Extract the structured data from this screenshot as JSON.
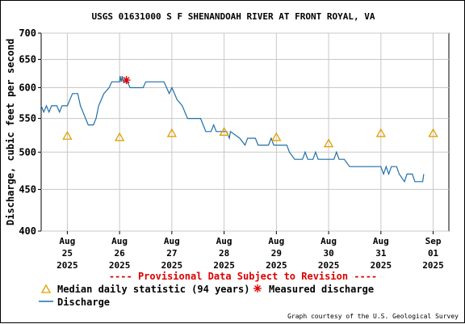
{
  "chart_data": {
    "type": "line",
    "title": "USGS 01631000 S F SHENANDOAH RIVER AT FRONT ROYAL, VA",
    "ylabel": "Discharge, cubic feet per second",
    "y_scale": "log",
    "ylim": [
      400,
      700
    ],
    "y_ticks": [
      "700",
      "650",
      "600",
      "550",
      "500",
      "450",
      "400"
    ],
    "y_tick_values": [
      700,
      650,
      600,
      550,
      500,
      450,
      400
    ],
    "y_grid_values": [
      700,
      650,
      600,
      550,
      500,
      450,
      400
    ],
    "x_ticks": [
      {
        "month": "Aug",
        "day": "25",
        "year": "2025",
        "t": 0
      },
      {
        "month": "Aug",
        "day": "26",
        "year": "2025",
        "t": 1
      },
      {
        "month": "Aug",
        "day": "27",
        "year": "2025",
        "t": 2
      },
      {
        "month": "Aug",
        "day": "28",
        "year": "2025",
        "t": 3
      },
      {
        "month": "Aug",
        "day": "29",
        "year": "2025",
        "t": 4
      },
      {
        "month": "Aug",
        "day": "30",
        "year": "2025",
        "t": 5
      },
      {
        "month": "Aug",
        "day": "31",
        "year": "2025",
        "t": 6
      },
      {
        "month": "Sep",
        "day": "01",
        "year": "2025",
        "t": 7
      }
    ],
    "xlim": [
      -0.5,
      7.3
    ],
    "grid": true,
    "provisional_note": "---- Provisional Data Subject to Revision ----",
    "series": [
      {
        "name": "Discharge",
        "color": "#1f6fa8",
        "kind": "line",
        "points": [
          [
            -0.5,
            570
          ],
          [
            -0.45,
            560
          ],
          [
            -0.4,
            570
          ],
          [
            -0.35,
            560
          ],
          [
            -0.3,
            570
          ],
          [
            -0.2,
            570
          ],
          [
            -0.15,
            560
          ],
          [
            -0.1,
            570
          ],
          [
            0.0,
            570
          ],
          [
            0.05,
            580
          ],
          [
            0.1,
            590
          ],
          [
            0.2,
            590
          ],
          [
            0.25,
            570
          ],
          [
            0.3,
            560
          ],
          [
            0.35,
            550
          ],
          [
            0.4,
            540
          ],
          [
            0.5,
            540
          ],
          [
            0.55,
            550
          ],
          [
            0.6,
            570
          ],
          [
            0.65,
            580
          ],
          [
            0.7,
            590
          ],
          [
            0.8,
            600
          ],
          [
            0.85,
            610
          ],
          [
            0.95,
            610
          ],
          [
            1.0,
            610
          ],
          [
            1.01,
            620
          ],
          [
            1.03,
            610
          ],
          [
            1.05,
            620
          ],
          [
            1.07,
            610
          ],
          [
            1.15,
            610
          ],
          [
            1.2,
            600
          ],
          [
            1.45,
            600
          ],
          [
            1.5,
            610
          ],
          [
            1.85,
            610
          ],
          [
            1.9,
            600
          ],
          [
            1.95,
            590
          ],
          [
            2.0,
            600
          ],
          [
            2.05,
            590
          ],
          [
            2.1,
            580
          ],
          [
            2.2,
            570
          ],
          [
            2.25,
            560
          ],
          [
            2.3,
            550
          ],
          [
            2.55,
            550
          ],
          [
            2.6,
            540
          ],
          [
            2.65,
            530
          ],
          [
            2.75,
            530
          ],
          [
            2.8,
            540
          ],
          [
            2.85,
            530
          ],
          [
            3.05,
            530
          ],
          [
            3.1,
            520
          ],
          [
            3.12,
            530
          ],
          [
            3.3,
            520
          ],
          [
            3.4,
            510
          ],
          [
            3.45,
            520
          ],
          [
            3.6,
            520
          ],
          [
            3.65,
            510
          ],
          [
            3.85,
            510
          ],
          [
            3.9,
            520
          ],
          [
            3.95,
            510
          ],
          [
            4.2,
            510
          ],
          [
            4.25,
            500
          ],
          [
            4.35,
            490
          ],
          [
            4.5,
            490
          ],
          [
            4.55,
            500
          ],
          [
            4.6,
            490
          ],
          [
            4.7,
            490
          ],
          [
            4.75,
            500
          ],
          [
            4.8,
            490
          ],
          [
            5.1,
            490
          ],
          [
            5.15,
            500
          ],
          [
            5.2,
            490
          ],
          [
            5.3,
            490
          ],
          [
            5.4,
            480
          ],
          [
            5.5,
            480
          ],
          [
            5.6,
            480
          ],
          [
            6.0,
            480
          ],
          [
            6.05,
            470
          ],
          [
            6.1,
            480
          ],
          [
            6.15,
            470
          ],
          [
            6.2,
            480
          ],
          [
            6.3,
            480
          ],
          [
            6.35,
            470
          ],
          [
            6.45,
            460
          ],
          [
            6.5,
            470
          ],
          [
            6.6,
            470
          ],
          [
            6.65,
            460
          ],
          [
            6.8,
            460
          ],
          [
            6.82,
            470
          ]
        ]
      },
      {
        "name": "Median daily statistic (94 years)",
        "color": "#e0a000",
        "kind": "triangle",
        "points": [
          [
            0,
            524
          ],
          [
            1,
            522
          ],
          [
            2,
            528
          ],
          [
            3,
            530
          ],
          [
            4,
            522
          ],
          [
            5,
            513
          ],
          [
            6,
            528
          ],
          [
            7,
            528
          ]
        ]
      },
      {
        "name": "Measured discharge",
        "color": "#dd0000",
        "kind": "asterisk",
        "points": [
          [
            1.13,
            613
          ]
        ]
      }
    ],
    "legend_placement": "bottom-left",
    "legend": [
      {
        "name": "Median daily statistic (94 years)",
        "symbol": "triangle",
        "color": "#e0a000"
      },
      {
        "name": "Measured discharge",
        "symbol": "asterisk",
        "color": "#dd0000"
      },
      {
        "name": "Discharge",
        "symbol": "line",
        "color": "#1f6fa8"
      }
    ]
  },
  "credit": "Graph courtesy of the U.S. Geological Survey"
}
